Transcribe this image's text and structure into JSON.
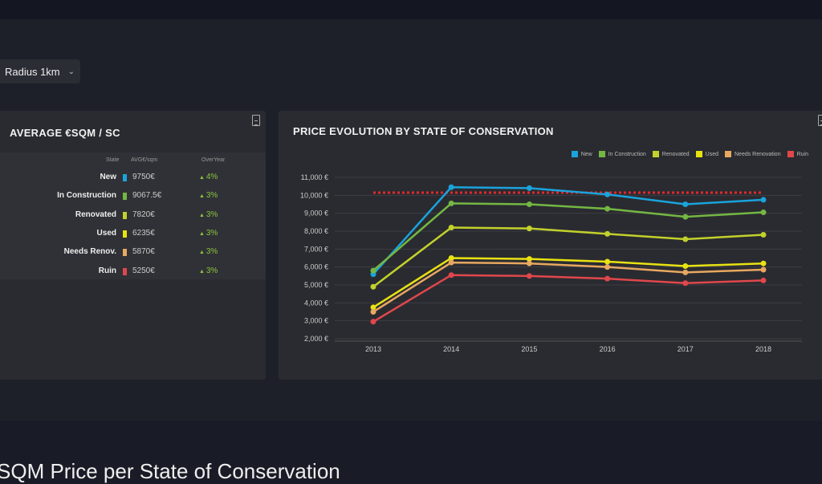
{
  "filter": {
    "radius_label": "Radius 1km",
    "icon": "chevron-down-icon"
  },
  "avg_card": {
    "title": "AVERAGE €SQM / SC",
    "headers": {
      "state": "State",
      "avg": "AVG€/sqm",
      "yoy": "OverYear"
    },
    "rows": [
      {
        "state": "New",
        "color": "#1aa3dc",
        "avg": "9750€",
        "yoy": "4%"
      },
      {
        "state": "In Construction",
        "color": "#74b743",
        "avg": "9067.5€",
        "yoy": "3%"
      },
      {
        "state": "Renovated",
        "color": "#c2d12b",
        "avg": "7820€",
        "yoy": "3%"
      },
      {
        "state": "Used",
        "color": "#e8e212",
        "avg": "6235€",
        "yoy": "3%"
      },
      {
        "state": "Needs Renov.",
        "color": "#e8a860",
        "avg": "5870€",
        "yoy": "3%"
      },
      {
        "state": "Ruin",
        "color": "#e0474c",
        "avg": "5250€",
        "yoy": "3%"
      }
    ]
  },
  "chart_card": {
    "title": "PRICE EVOLUTION BY STATE OF CONSERVATION"
  },
  "chart_data": {
    "type": "line",
    "title": "PRICE EVOLUTION BY STATE OF CONSERVATION",
    "x": [
      "2013",
      "2014",
      "2015",
      "2016",
      "2017",
      "2018"
    ],
    "ylim": [
      2000,
      11000
    ],
    "yticks": [
      "2,000 €",
      "3,000 €",
      "4,000 €",
      "5,000 €",
      "6,000 €",
      "7,000 €",
      "8,000 €",
      "9,000 €",
      "10,000 €",
      "11,000 €"
    ],
    "grid": true,
    "legend": "top-right",
    "series": [
      {
        "name": "New",
        "color": "#1aa3dc",
        "values": [
          5600,
          10450,
          10400,
          10050,
          9500,
          9750
        ]
      },
      {
        "name": "In Construction",
        "color": "#74b743",
        "values": [
          5800,
          9550,
          9500,
          9250,
          8800,
          9050
        ]
      },
      {
        "name": "Renovated",
        "color": "#c2d12b",
        "values": [
          4900,
          8200,
          8150,
          7850,
          7550,
          7800
        ]
      },
      {
        "name": "Used",
        "color": "#e8e212",
        "values": [
          3750,
          6500,
          6450,
          6300,
          6050,
          6200
        ]
      },
      {
        "name": "Needs Renovation",
        "color": "#e8a860",
        "values": [
          3500,
          6250,
          6200,
          6000,
          5700,
          5850
        ]
      },
      {
        "name": "Ruin",
        "color": "#e0474c",
        "values": [
          2950,
          5550,
          5500,
          5350,
          5100,
          5250
        ]
      }
    ],
    "reference_line": {
      "value": 10150,
      "color": "#e0282c",
      "style": "dotted"
    }
  },
  "section_heading": "SQM Price per State of Conservation"
}
